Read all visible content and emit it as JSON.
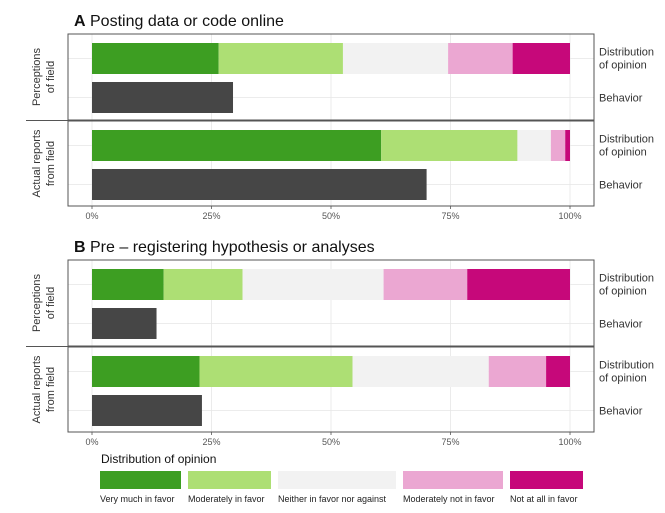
{
  "chart_data": [
    {
      "type": "bar",
      "orientation": "horizontal",
      "stacked": true,
      "panel_label": "A",
      "title": "Posting data or code online",
      "xlim": [
        0,
        100
      ],
      "x_ticks": [
        "0%",
        "25%",
        "50%",
        "75%",
        "100%"
      ],
      "grid": true,
      "facets": [
        {
          "label": "Perceptions of field",
          "rows": [
            {
              "label": "Distribution of opinion",
              "segments": [
                26.5,
                26,
                22,
                13.5,
                12
              ]
            },
            {
              "label": "Behavior",
              "value": 29.5
            }
          ]
        },
        {
          "label": "Actual reports from field",
          "rows": [
            {
              "label": "Distribution of opinion",
              "segments": [
                60.5,
                28.5,
                7,
                3,
                1
              ]
            },
            {
              "label": "Behavior",
              "value": 70
            }
          ]
        }
      ]
    },
    {
      "type": "bar",
      "orientation": "horizontal",
      "stacked": true,
      "panel_label": "B",
      "title": "Pre – registering hypothesis or analyses",
      "xlim": [
        0,
        100
      ],
      "x_ticks": [
        "0%",
        "25%",
        "50%",
        "75%",
        "100%"
      ],
      "grid": true,
      "facets": [
        {
          "label": "Perceptions of field",
          "rows": [
            {
              "label": "Distribution of opinion",
              "segments": [
                15,
                16.5,
                29.5,
                17.5,
                21.5
              ]
            },
            {
              "label": "Behavior",
              "value": 13.5
            }
          ]
        },
        {
          "label": "Actual reports from field",
          "rows": [
            {
              "label": "Distribution of opinion",
              "segments": [
                22.5,
                32,
                28.5,
                12,
                5
              ]
            },
            {
              "label": "Behavior",
              "value": 23
            }
          ]
        }
      ]
    }
  ],
  "legend": {
    "title": "Distribution of opinion",
    "position": "bottom",
    "items": [
      {
        "label": "Very much in favor",
        "color": "#3d9e22"
      },
      {
        "label": "Moderately in favor",
        "color": "#addf74"
      },
      {
        "label": "Neither in favor nor against",
        "color": "#f2f2f2"
      },
      {
        "label": "Moderately not in favor",
        "color": "#eba7d2"
      },
      {
        "label": "Not at all in favor",
        "color": "#c6087a"
      }
    ]
  },
  "colors": {
    "behavior": "#464646",
    "panel_border": "#555555",
    "gridline": "#e6e6e6"
  }
}
